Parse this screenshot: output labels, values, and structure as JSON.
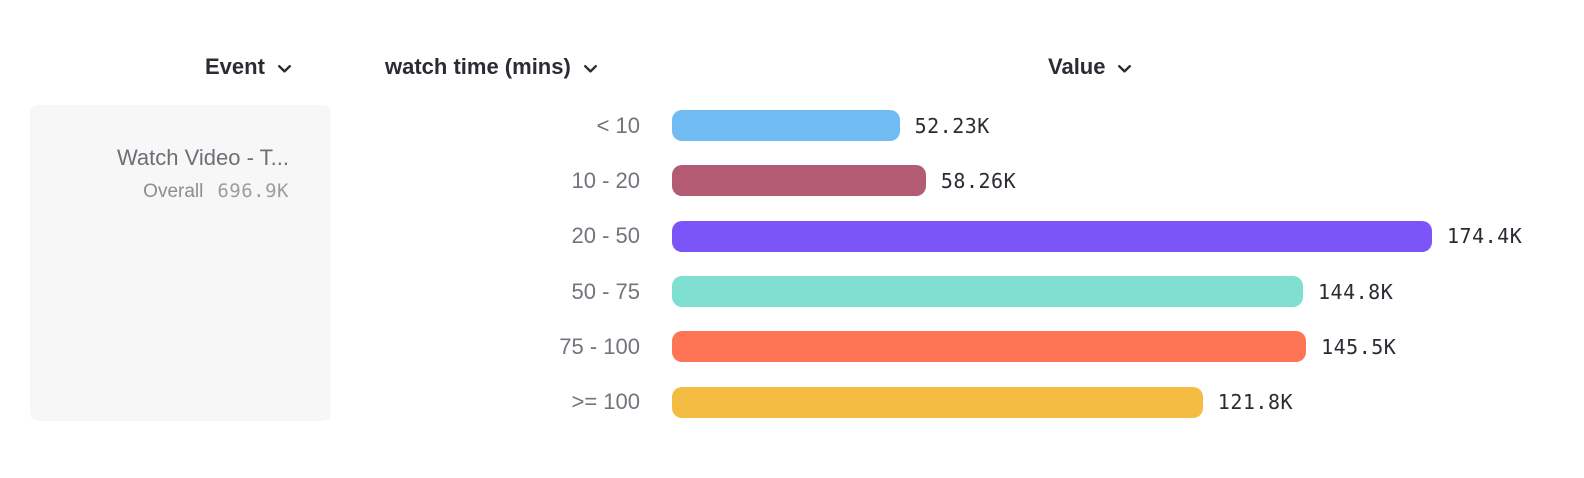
{
  "header": {
    "event_label": "Event",
    "breakdown_label": "watch time (mins)",
    "value_label": "Value"
  },
  "event_panel": {
    "event_name": "Watch Video - T...",
    "overall_label": "Overall",
    "overall_value": "696.9K"
  },
  "chart_data": {
    "type": "bar",
    "orientation": "horizontal",
    "title": "",
    "xlabel": "Value",
    "ylabel": "watch time (mins)",
    "categories": [
      "< 10",
      "10 - 20",
      "20 - 50",
      "50 - 75",
      "75 - 100",
      ">= 100"
    ],
    "values": [
      52230,
      58260,
      174400,
      144800,
      145500,
      121800
    ],
    "value_labels": [
      "52.23K",
      "58.26K",
      "174.4K",
      "144.8K",
      "145.5K",
      "121.8K"
    ],
    "bar_colors": [
      "#70BCF2",
      "#B25B72",
      "#7B55F7",
      "#7FE0D2",
      "#FE7556",
      "#F5BC42"
    ],
    "overall": {
      "label": "Overall",
      "value": 696900,
      "value_label": "696.9K"
    },
    "xlim": [
      0,
      180000
    ],
    "grid": false,
    "legend": "none"
  },
  "colors": {
    "header_text": "#2B2B33",
    "row_label_text": "#73737B",
    "value_text": "#2B2B33",
    "panel_bg": "#F7F7F8",
    "panel_title_text": "#6E6E76",
    "panel_overall_text": "#8C8C93",
    "panel_overall_value_text": "#9C9CA2"
  }
}
